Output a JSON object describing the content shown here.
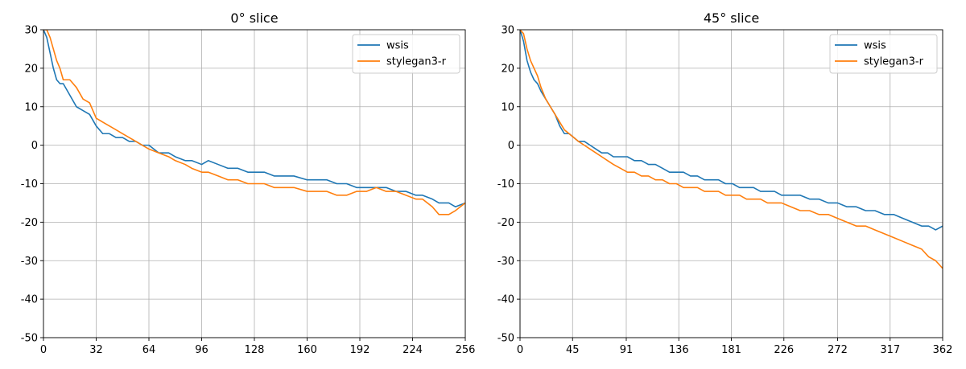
{
  "figure": {
    "charts_count": 2
  },
  "chart_data": [
    {
      "type": "line",
      "title": "0° slice",
      "xlabel": "",
      "ylabel": "",
      "xlim": [
        0,
        256
      ],
      "ylim": [
        -50,
        30
      ],
      "xticks": [
        0,
        32,
        64,
        96,
        128,
        160,
        192,
        224,
        256
      ],
      "yticks": [
        -50,
        -40,
        -30,
        -20,
        -10,
        0,
        10,
        20,
        30
      ],
      "grid": true,
      "legend_position": "top-right",
      "series": [
        {
          "name": "wsis",
          "color": "#1f77b4",
          "x": [
            0,
            2,
            4,
            6,
            8,
            10,
            12,
            16,
            20,
            24,
            28,
            32,
            36,
            40,
            44,
            48,
            52,
            56,
            60,
            64,
            70,
            76,
            80,
            86,
            90,
            96,
            100,
            106,
            112,
            118,
            124,
            128,
            134,
            140,
            146,
            152,
            160,
            166,
            172,
            178,
            184,
            190,
            196,
            202,
            208,
            214,
            220,
            226,
            230,
            236,
            240,
            246,
            250,
            256
          ],
          "y": [
            30,
            28,
            24,
            20,
            17,
            16,
            16,
            13,
            10,
            9,
            8,
            5,
            3,
            3,
            2,
            2,
            1,
            1,
            0,
            0,
            -2,
            -2,
            -3,
            -4,
            -4,
            -5,
            -4,
            -5,
            -6,
            -6,
            -7,
            -7,
            -7,
            -8,
            -8,
            -8,
            -9,
            -9,
            -9,
            -10,
            -10,
            -11,
            -11,
            -11,
            -11,
            -12,
            -12,
            -13,
            -13,
            -14,
            -15,
            -15,
            -16,
            -15
          ]
        },
        {
          "name": "stylegan3-r",
          "color": "#ff7f0e",
          "x": [
            0,
            2,
            4,
            6,
            8,
            10,
            12,
            16,
            20,
            24,
            28,
            32,
            36,
            40,
            44,
            48,
            52,
            56,
            60,
            64,
            70,
            76,
            80,
            86,
            90,
            96,
            100,
            106,
            112,
            118,
            124,
            128,
            134,
            140,
            146,
            152,
            160,
            166,
            172,
            178,
            184,
            190,
            196,
            202,
            208,
            214,
            220,
            226,
            230,
            236,
            240,
            246,
            250,
            256
          ],
          "y": [
            30,
            30,
            28,
            25,
            22,
            20,
            17,
            17,
            15,
            12,
            11,
            7,
            6,
            5,
            4,
            3,
            2,
            1,
            0,
            -1,
            -2,
            -3,
            -4,
            -5,
            -6,
            -7,
            -7,
            -8,
            -9,
            -9,
            -10,
            -10,
            -10,
            -11,
            -11,
            -11,
            -12,
            -12,
            -12,
            -13,
            -13,
            -12,
            -12,
            -11,
            -12,
            -12,
            -13,
            -14,
            -14,
            -16,
            -18,
            -18,
            -17,
            -15
          ]
        }
      ]
    },
    {
      "type": "line",
      "title": "45° slice",
      "xlabel": "",
      "ylabel": "",
      "xlim": [
        0,
        362
      ],
      "ylim": [
        -50,
        30
      ],
      "xticks": [
        0,
        45,
        91,
        136,
        181,
        226,
        272,
        317,
        362
      ],
      "yticks": [
        -50,
        -40,
        -30,
        -20,
        -10,
        0,
        10,
        20,
        30
      ],
      "grid": true,
      "legend_position": "top-right",
      "series": [
        {
          "name": "wsis",
          "color": "#1f77b4",
          "x": [
            0,
            3,
            6,
            9,
            12,
            15,
            18,
            22,
            26,
            30,
            34,
            38,
            42,
            46,
            50,
            55,
            60,
            65,
            70,
            75,
            80,
            86,
            92,
            98,
            104,
            110,
            116,
            122,
            128,
            134,
            140,
            146,
            152,
            158,
            164,
            170,
            176,
            182,
            188,
            194,
            200,
            206,
            212,
            218,
            224,
            232,
            240,
            248,
            256,
            264,
            272,
            280,
            288,
            296,
            304,
            312,
            320,
            328,
            336,
            344,
            350,
            356,
            362
          ],
          "y": [
            30,
            27,
            22,
            19,
            17,
            16,
            14,
            12,
            10,
            8,
            5,
            3,
            3,
            2,
            1,
            1,
            0,
            -1,
            -2,
            -2,
            -3,
            -3,
            -3,
            -4,
            -4,
            -5,
            -5,
            -6,
            -7,
            -7,
            -7,
            -8,
            -8,
            -9,
            -9,
            -9,
            -10,
            -10,
            -11,
            -11,
            -11,
            -12,
            -12,
            -12,
            -13,
            -13,
            -13,
            -14,
            -14,
            -15,
            -15,
            -16,
            -16,
            -17,
            -17,
            -18,
            -18,
            -19,
            -20,
            -21,
            -21,
            -22,
            -21
          ]
        },
        {
          "name": "stylegan3-r",
          "color": "#ff7f0e",
          "x": [
            0,
            3,
            6,
            9,
            12,
            15,
            18,
            22,
            26,
            30,
            34,
            38,
            42,
            46,
            50,
            55,
            60,
            65,
            70,
            75,
            80,
            86,
            92,
            98,
            104,
            110,
            116,
            122,
            128,
            134,
            140,
            146,
            152,
            158,
            164,
            170,
            176,
            182,
            188,
            194,
            200,
            206,
            212,
            218,
            224,
            232,
            240,
            248,
            256,
            264,
            272,
            280,
            288,
            296,
            304,
            312,
            320,
            328,
            336,
            344,
            350,
            356,
            362
          ],
          "y": [
            30,
            29,
            25,
            22,
            20,
            18,
            15,
            12,
            10,
            8,
            6,
            4,
            3,
            2,
            1,
            0,
            -1,
            -2,
            -3,
            -4,
            -5,
            -6,
            -7,
            -7,
            -8,
            -8,
            -9,
            -9,
            -10,
            -10,
            -11,
            -11,
            -11,
            -12,
            -12,
            -12,
            -13,
            -13,
            -13,
            -14,
            -14,
            -14,
            -15,
            -15,
            -15,
            -16,
            -17,
            -17,
            -18,
            -18,
            -19,
            -20,
            -21,
            -21,
            -22,
            -23,
            -24,
            -25,
            -26,
            -27,
            -29,
            -30,
            -32
          ]
        }
      ]
    }
  ]
}
